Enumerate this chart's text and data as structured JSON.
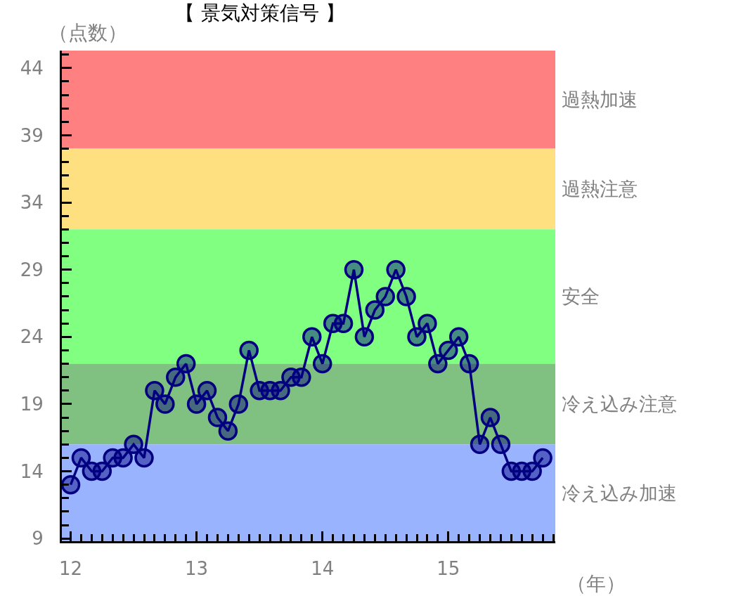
{
  "chart_data": {
    "type": "line",
    "title": "【 景気対策信号 】",
    "xlabel": "（年）",
    "ylabel": "（点数）",
    "x": [
      12.0,
      12.0833,
      12.1667,
      12.25,
      12.3333,
      12.4167,
      12.5,
      12.5833,
      12.6667,
      12.75,
      12.8333,
      12.9167,
      13.0,
      13.0833,
      13.1667,
      13.25,
      13.3333,
      13.4167,
      13.5,
      13.5833,
      13.6667,
      13.75,
      13.8333,
      13.9167,
      14.0,
      14.0833,
      14.1667,
      14.25,
      14.3333,
      14.4167,
      14.5,
      14.5833,
      14.6667,
      14.75,
      14.8333,
      14.9167,
      15.0,
      15.0833,
      15.1667,
      15.25,
      15.3333,
      15.4167,
      15.5,
      15.5833,
      15.6667,
      15.75
    ],
    "series": [
      {
        "color": "#000080",
        "values": [
          13,
          15,
          14,
          14,
          15,
          15,
          16,
          15,
          20,
          19,
          21,
          22,
          19,
          20,
          18,
          17,
          19,
          23,
          20,
          20,
          20,
          21,
          21,
          24,
          22,
          25,
          25,
          29,
          24,
          26,
          27,
          29,
          27,
          24,
          25,
          22,
          23,
          24,
          22,
          16,
          18,
          16,
          14,
          14,
          14,
          15
        ]
      }
    ],
    "xlim": [
      11.93,
      15.85
    ],
    "xticks": [
      12,
      13,
      14,
      15
    ],
    "ylim": [
      8.8,
      45.3
    ],
    "yticks": [
      9,
      14,
      19,
      24,
      29,
      34,
      39,
      44
    ],
    "bands": [
      {
        "axis": "y",
        "from": 38,
        "to": 45.3,
        "label": "過熱加速",
        "color": "#ff8080"
      },
      {
        "axis": "y",
        "from": 32,
        "to": 38,
        "label": "過熱注意",
        "color": "#ffe080"
      },
      {
        "axis": "y",
        "from": 22,
        "to": 32,
        "label": "安全",
        "color": "#80ff80"
      },
      {
        "axis": "y",
        "from": 16,
        "to": 22,
        "label": "冷え込み注意",
        "color": "#80c080"
      },
      {
        "axis": "y",
        "from": 8.8,
        "to": 16,
        "label": "冷え込み加速",
        "color": "#99b3ff"
      }
    ],
    "marker": "circle",
    "line_style": "solid"
  }
}
